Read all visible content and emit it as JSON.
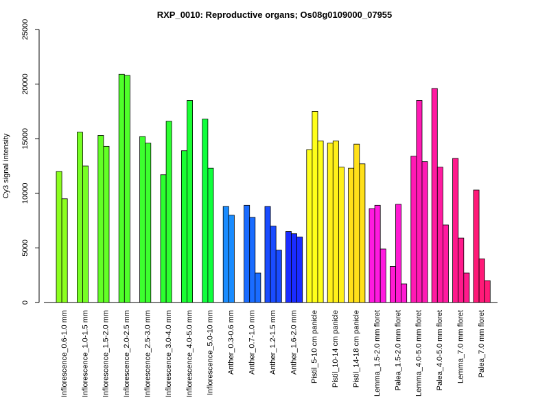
{
  "chart_data": {
    "type": "bar",
    "title": "RXP_0010: Reproductive organs; Os08g0109000_07955",
    "xlabel": "",
    "ylabel": "Cy3 signal intensity",
    "ylim": [
      0,
      25000
    ],
    "yticks": [
      "0",
      "5000",
      "10000",
      "15000",
      "20000",
      "25000"
    ],
    "ytick_values": [
      0,
      5000,
      10000,
      15000,
      20000,
      25000
    ],
    "grid": false,
    "legend": "none",
    "groups": [
      {
        "label": "Inflorescence_0.6-1.0 mm",
        "color": "#8cff1f",
        "values": [
          12000,
          9500
        ]
      },
      {
        "label": "Inflorescence_1.0-1.5 mm",
        "color": "#77ff24",
        "values": [
          15600,
          12500
        ]
      },
      {
        "label": "Inflorescence_1.5-2.0 mm",
        "color": "#63ff26",
        "values": [
          15300,
          14300
        ]
      },
      {
        "label": "Inflorescence_2.0-2.5 mm",
        "color": "#4fff2a",
        "values": [
          20900,
          20800
        ]
      },
      {
        "label": "Inflorescence_2.5-3.0 mm",
        "color": "#3cff2e",
        "values": [
          15200,
          14600
        ]
      },
      {
        "label": "Inflorescence_3.0-4.0 mm",
        "color": "#2cff30",
        "values": [
          11700,
          16600
        ]
      },
      {
        "label": "Inflorescence_4.0-5.0 mm",
        "color": "#1aff33",
        "values": [
          13900,
          18500
        ]
      },
      {
        "label": "Inflorescence_5.0-10 mm",
        "color": "#0fff3c",
        "values": [
          16800,
          12300
        ]
      },
      {
        "label": "Anther_0.3-0.6 mm",
        "color": "#1a8cff",
        "values": [
          8800,
          8000
        ]
      },
      {
        "label": "Anther_0.7-1.0 mm",
        "color": "#1a6cff",
        "values": [
          8900,
          7800,
          2700
        ]
      },
      {
        "label": "Anther_1.2-1.5 mm",
        "color": "#1a4cff",
        "values": [
          8800,
          7000,
          4800
        ]
      },
      {
        "label": "Anther_1.6-2.0 mm",
        "color": "#1a2cff",
        "values": [
          6500,
          6300,
          6000
        ]
      },
      {
        "label": "Pistil_5-10 cm panicle",
        "color": "#ffff1a",
        "values": [
          14000,
          17500,
          14800
        ]
      },
      {
        "label": "Pistil_10-14 cm panicle",
        "color": "#fff01a",
        "values": [
          14600,
          14800,
          12400
        ]
      },
      {
        "label": "Pistil_14-18 cm panicle",
        "color": "#ffe01a",
        "values": [
          12300,
          14500,
          12700
        ]
      },
      {
        "label": "Lemma_1.5-2.0 mm floret",
        "color": "#ff1ae0",
        "values": [
          8600,
          8900,
          4900
        ]
      },
      {
        "label": "Palea_1.5-2.0 mm floret",
        "color": "#ff1ad2",
        "values": [
          3300,
          9000,
          1700
        ]
      },
      {
        "label": "Lemma_4.0-5.0 mm floret",
        "color": "#ff1ab4",
        "values": [
          13400,
          18500,
          12900
        ]
      },
      {
        "label": "Palea_4.0-5.0 mm floret",
        "color": "#ff1aa0",
        "values": [
          19600,
          12400,
          7100
        ]
      },
      {
        "label": "Lemma_7.0 mm floret",
        "color": "#ff1a8c",
        "values": [
          13200,
          5900,
          2700
        ]
      },
      {
        "label": "Palea_7.0 mm floret",
        "color": "#ff1a78",
        "values": [
          10300,
          4000,
          2000
        ]
      }
    ]
  }
}
